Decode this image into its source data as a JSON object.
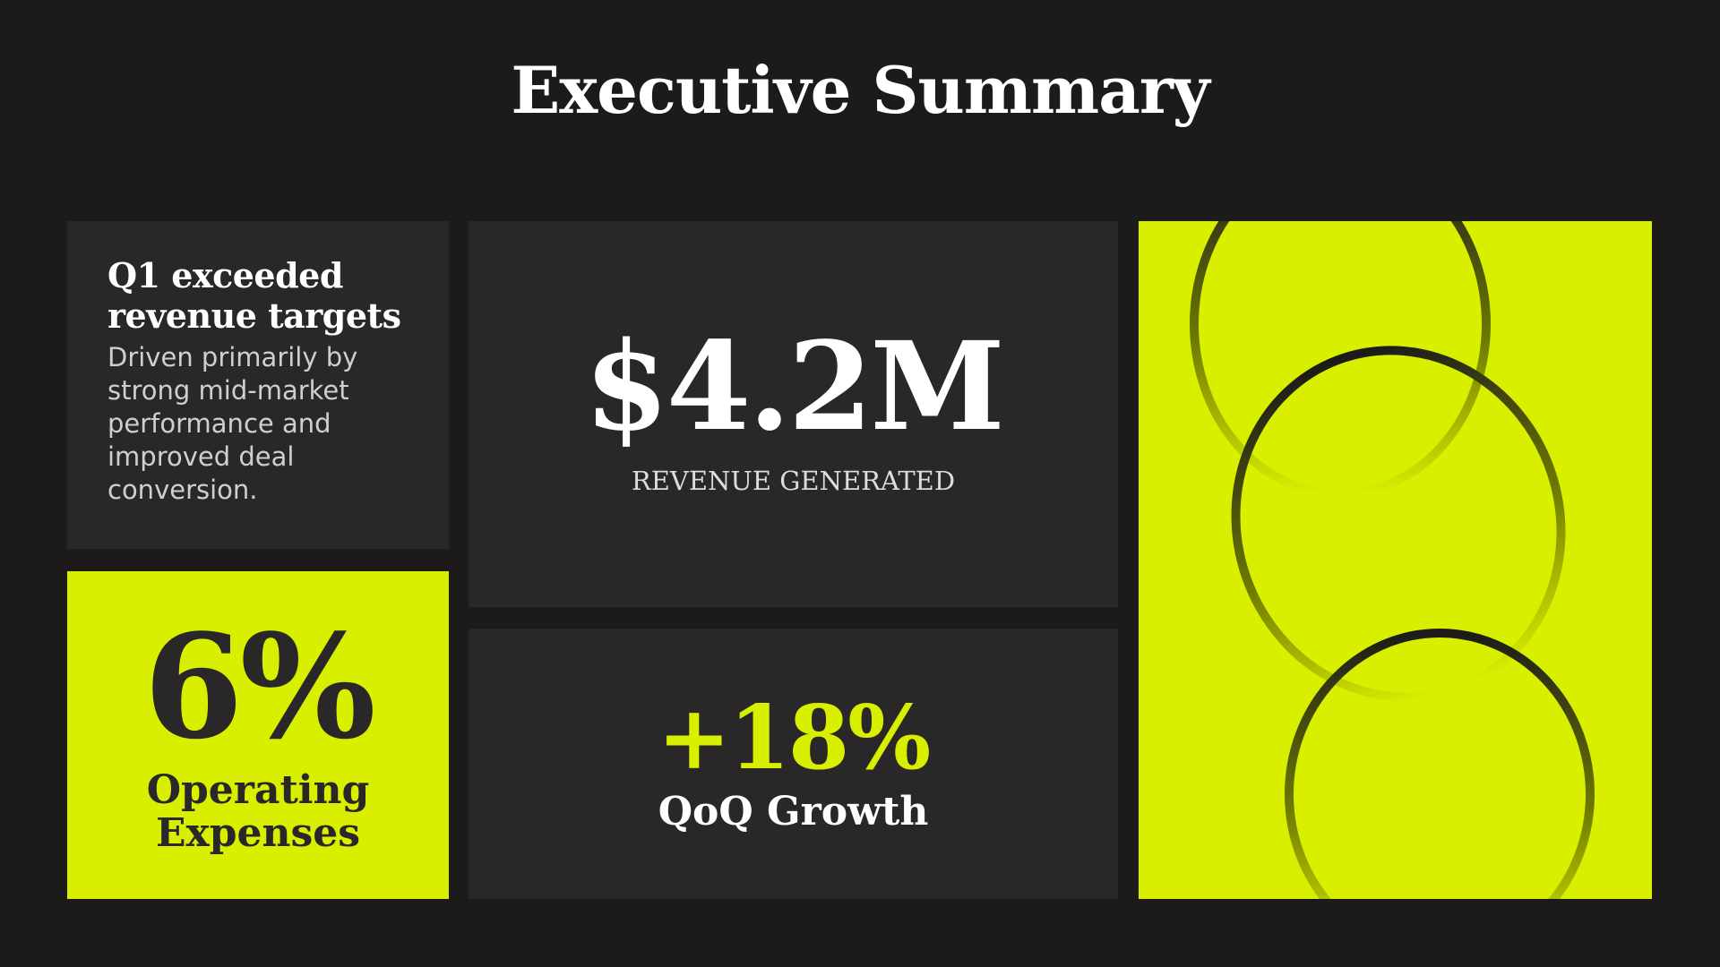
{
  "header": {
    "title": "Executive Summary"
  },
  "cards": [
    {
      "heading": "Q1 exceeded revenue targets",
      "body": "Driven primarily by strong mid-market performance and improved deal conversion."
    },
    {
      "value": "6%",
      "label": "Operating Expenses"
    },
    {
      "value": "$4.2M",
      "label": "REVENUE GENERATED"
    },
    {
      "value": "+18%",
      "label": "QoQ Growth"
    }
  ]
}
